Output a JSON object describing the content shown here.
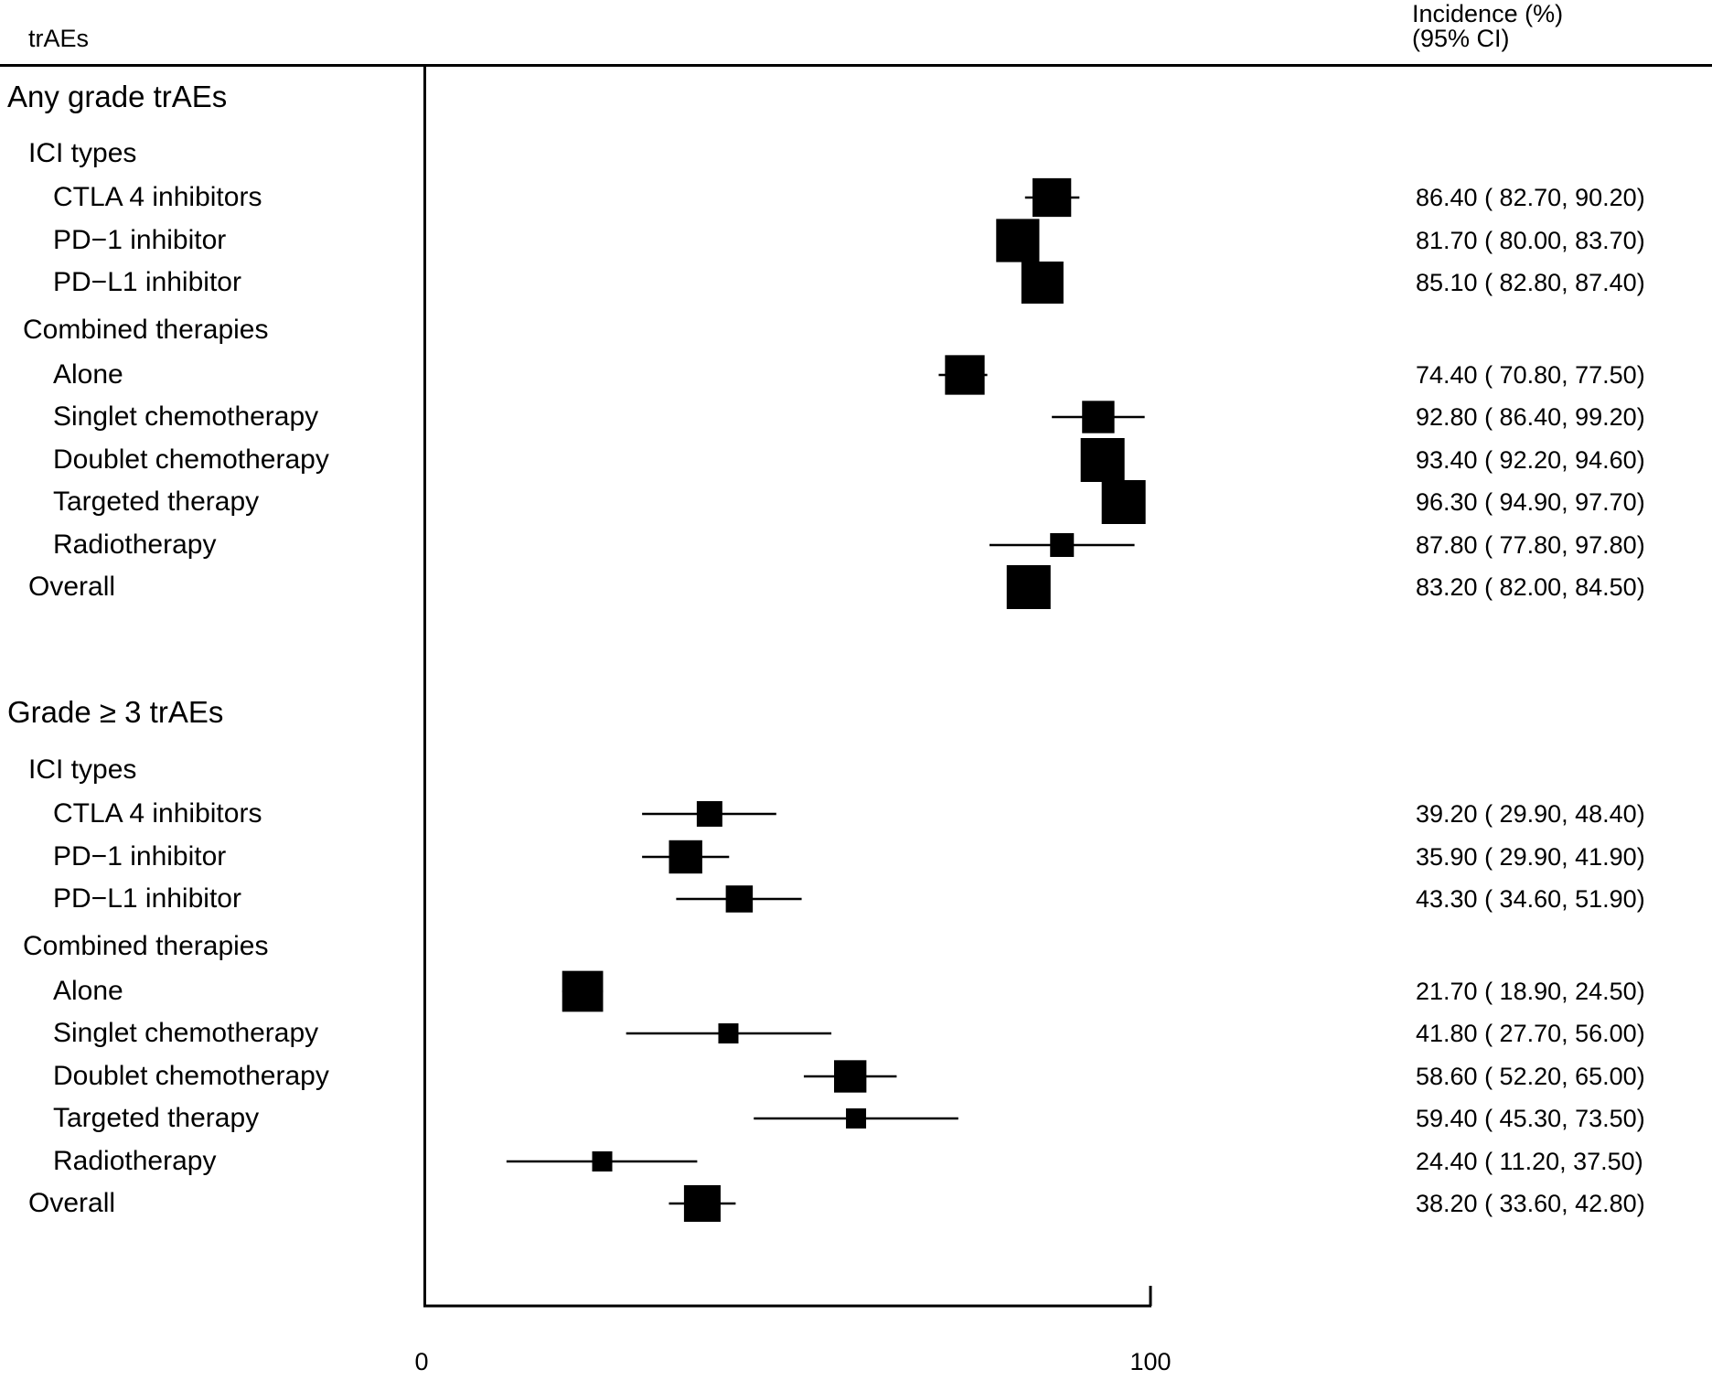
{
  "header": {
    "left_label": "trAEs",
    "right_label_line1": "Incidence (%)",
    "right_label_line2": "(95% CI)"
  },
  "chart_data": {
    "type": "forest",
    "x_ticks": [
      0,
      100
    ],
    "xlim": [
      0,
      100
    ],
    "sections": [
      {
        "title": "Any grade trAEs",
        "subgroups": [
          {
            "title": "ICI types",
            "rows": [
              {
                "label": "CTLA 4 inhibitors",
                "estimate": 86.4,
                "lower": 82.7,
                "upper": 90.2,
                "text": "86.40 ( 82.70, 90.20)"
              },
              {
                "label": "PD−1 inhibitor",
                "estimate": 81.7,
                "lower": 80.0,
                "upper": 83.7,
                "text": "81.70 ( 80.00, 83.70)"
              },
              {
                "label": "PD−L1 inhibitor",
                "estimate": 85.1,
                "lower": 82.8,
                "upper": 87.4,
                "text": "85.10 ( 82.80, 87.40)"
              }
            ]
          },
          {
            "title": "Combined therapies",
            "rows": [
              {
                "label": "Alone",
                "estimate": 74.4,
                "lower": 70.8,
                "upper": 77.5,
                "text": "74.40 ( 70.80, 77.50)"
              },
              {
                "label": "Singlet chemotherapy",
                "estimate": 92.8,
                "lower": 86.4,
                "upper": 99.2,
                "text": "92.80 ( 86.40, 99.20)"
              },
              {
                "label": "Doublet chemotherapy",
                "estimate": 93.4,
                "lower": 92.2,
                "upper": 94.6,
                "text": "93.40 ( 92.20, 94.60)"
              },
              {
                "label": "Targeted therapy",
                "estimate": 96.3,
                "lower": 94.9,
                "upper": 97.7,
                "text": "96.30 ( 94.90, 97.70)"
              },
              {
                "label": "Radiotherapy",
                "estimate": 87.8,
                "lower": 77.8,
                "upper": 97.8,
                "text": "87.80 ( 77.80, 97.80)"
              }
            ]
          }
        ],
        "overall": {
          "label": "Overall",
          "estimate": 83.2,
          "lower": 82.0,
          "upper": 84.5,
          "text": "83.20 ( 82.00, 84.50)"
        }
      },
      {
        "title": "Grade ≥ 3 trAEs",
        "subgroups": [
          {
            "title": "ICI types",
            "rows": [
              {
                "label": "CTLA 4 inhibitors",
                "estimate": 39.2,
                "lower": 29.9,
                "upper": 48.4,
                "text": "39.20 ( 29.90, 48.40)"
              },
              {
                "label": "PD−1 inhibitor",
                "estimate": 35.9,
                "lower": 29.9,
                "upper": 41.9,
                "text": "35.90 ( 29.90, 41.90)"
              },
              {
                "label": "PD−L1 inhibitor",
                "estimate": 43.3,
                "lower": 34.6,
                "upper": 51.9,
                "text": "43.30 ( 34.60, 51.90)"
              }
            ]
          },
          {
            "title": "Combined therapies",
            "rows": [
              {
                "label": "Alone",
                "estimate": 21.7,
                "lower": 18.9,
                "upper": 24.5,
                "text": "21.70 ( 18.90, 24.50)"
              },
              {
                "label": "Singlet chemotherapy",
                "estimate": 41.8,
                "lower": 27.7,
                "upper": 56.0,
                "text": "41.80 ( 27.70, 56.00)"
              },
              {
                "label": "Doublet chemotherapy",
                "estimate": 58.6,
                "lower": 52.2,
                "upper": 65.0,
                "text": "58.60 ( 52.20, 65.00)"
              },
              {
                "label": "Targeted therapy",
                "estimate": 59.4,
                "lower": 45.3,
                "upper": 73.5,
                "text": "59.40 ( 45.30, 73.50)"
              },
              {
                "label": "Radiotherapy",
                "estimate": 24.4,
                "lower": 11.2,
                "upper": 37.5,
                "text": "24.40 ( 11.20, 37.50)"
              }
            ]
          }
        ],
        "overall": {
          "label": "Overall",
          "estimate": 38.2,
          "lower": 33.6,
          "upper": 42.8,
          "text": "38.20 ( 33.60, 42.80)"
        }
      }
    ]
  }
}
